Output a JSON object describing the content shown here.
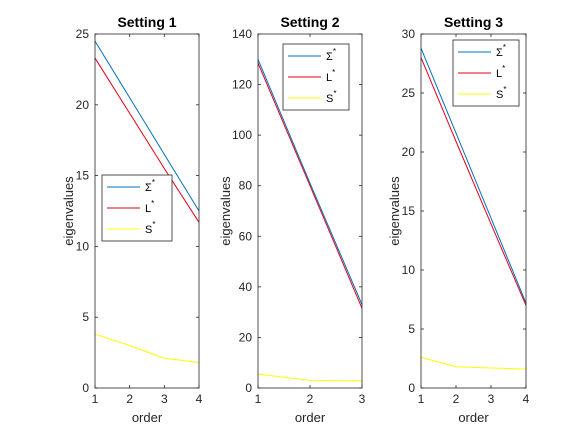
{
  "chart_data": [
    {
      "type": "line",
      "title": "Setting 1",
      "xlabel": "order",
      "ylabel": "eigenvalues",
      "x": [
        1,
        2,
        3,
        4
      ],
      "xlim": [
        1,
        4
      ],
      "ylim": [
        0,
        25
      ],
      "xticks": [
        1,
        2,
        3,
        4
      ],
      "yticks": [
        0,
        5,
        10,
        15,
        20,
        25
      ],
      "legend_position": "middle-left",
      "series": [
        {
          "name": "Σ*",
          "base": "Σ",
          "sup": "*",
          "color": "#0072BD",
          "values": [
            24.5,
            20.5,
            16.5,
            12.5
          ]
        },
        {
          "name": "L*",
          "base": "L",
          "sup": "*",
          "color": "#E6001A",
          "values": [
            23.3,
            19.4,
            15.5,
            11.7
          ]
        },
        {
          "name": "S*",
          "base": "S",
          "sup": "*",
          "color": "#FFFF00",
          "values": [
            3.8,
            3.0,
            2.1,
            1.8
          ]
        }
      ]
    },
    {
      "type": "line",
      "title": "Setting 2",
      "xlabel": "order",
      "ylabel": "eigenvalues",
      "x": [
        1,
        2,
        3
      ],
      "xlim": [
        1,
        3
      ],
      "ylim": [
        0,
        140
      ],
      "xticks": [
        1,
        2,
        3
      ],
      "yticks": [
        0,
        20,
        40,
        60,
        80,
        100,
        120,
        140
      ],
      "legend_position": "top-right",
      "series": [
        {
          "name": "Σ*",
          "base": "Σ",
          "sup": "*",
          "color": "#0072BD",
          "values": [
            130,
            81,
            33
          ]
        },
        {
          "name": "L*",
          "base": "L",
          "sup": "*",
          "color": "#E6001A",
          "values": [
            128.5,
            80,
            31.5
          ]
        },
        {
          "name": "S*",
          "base": "S",
          "sup": "*",
          "color": "#FFFF00",
          "values": [
            5.5,
            3.0,
            2.8
          ]
        }
      ]
    },
    {
      "type": "line",
      "title": "Setting 3",
      "xlabel": "order",
      "ylabel": "eigenvalues",
      "x": [
        1,
        2,
        3,
        4
      ],
      "xlim": [
        1,
        4
      ],
      "ylim": [
        0,
        30
      ],
      "xticks": [
        1,
        2,
        3,
        4
      ],
      "yticks": [
        0,
        5,
        10,
        15,
        20,
        25,
        30
      ],
      "legend_position": "top-right",
      "series": [
        {
          "name": "Σ*",
          "base": "Σ",
          "sup": "*",
          "color": "#0072BD",
          "values": [
            28.8,
            21.6,
            14.4,
            7.2
          ]
        },
        {
          "name": "L*",
          "base": "L",
          "sup": "*",
          "color": "#E6001A",
          "values": [
            28.0,
            20.9,
            13.9,
            7.0
          ]
        },
        {
          "name": "S*",
          "base": "S",
          "sup": "*",
          "color": "#FFFF00",
          "values": [
            2.6,
            1.8,
            1.7,
            1.6
          ]
        }
      ]
    }
  ]
}
